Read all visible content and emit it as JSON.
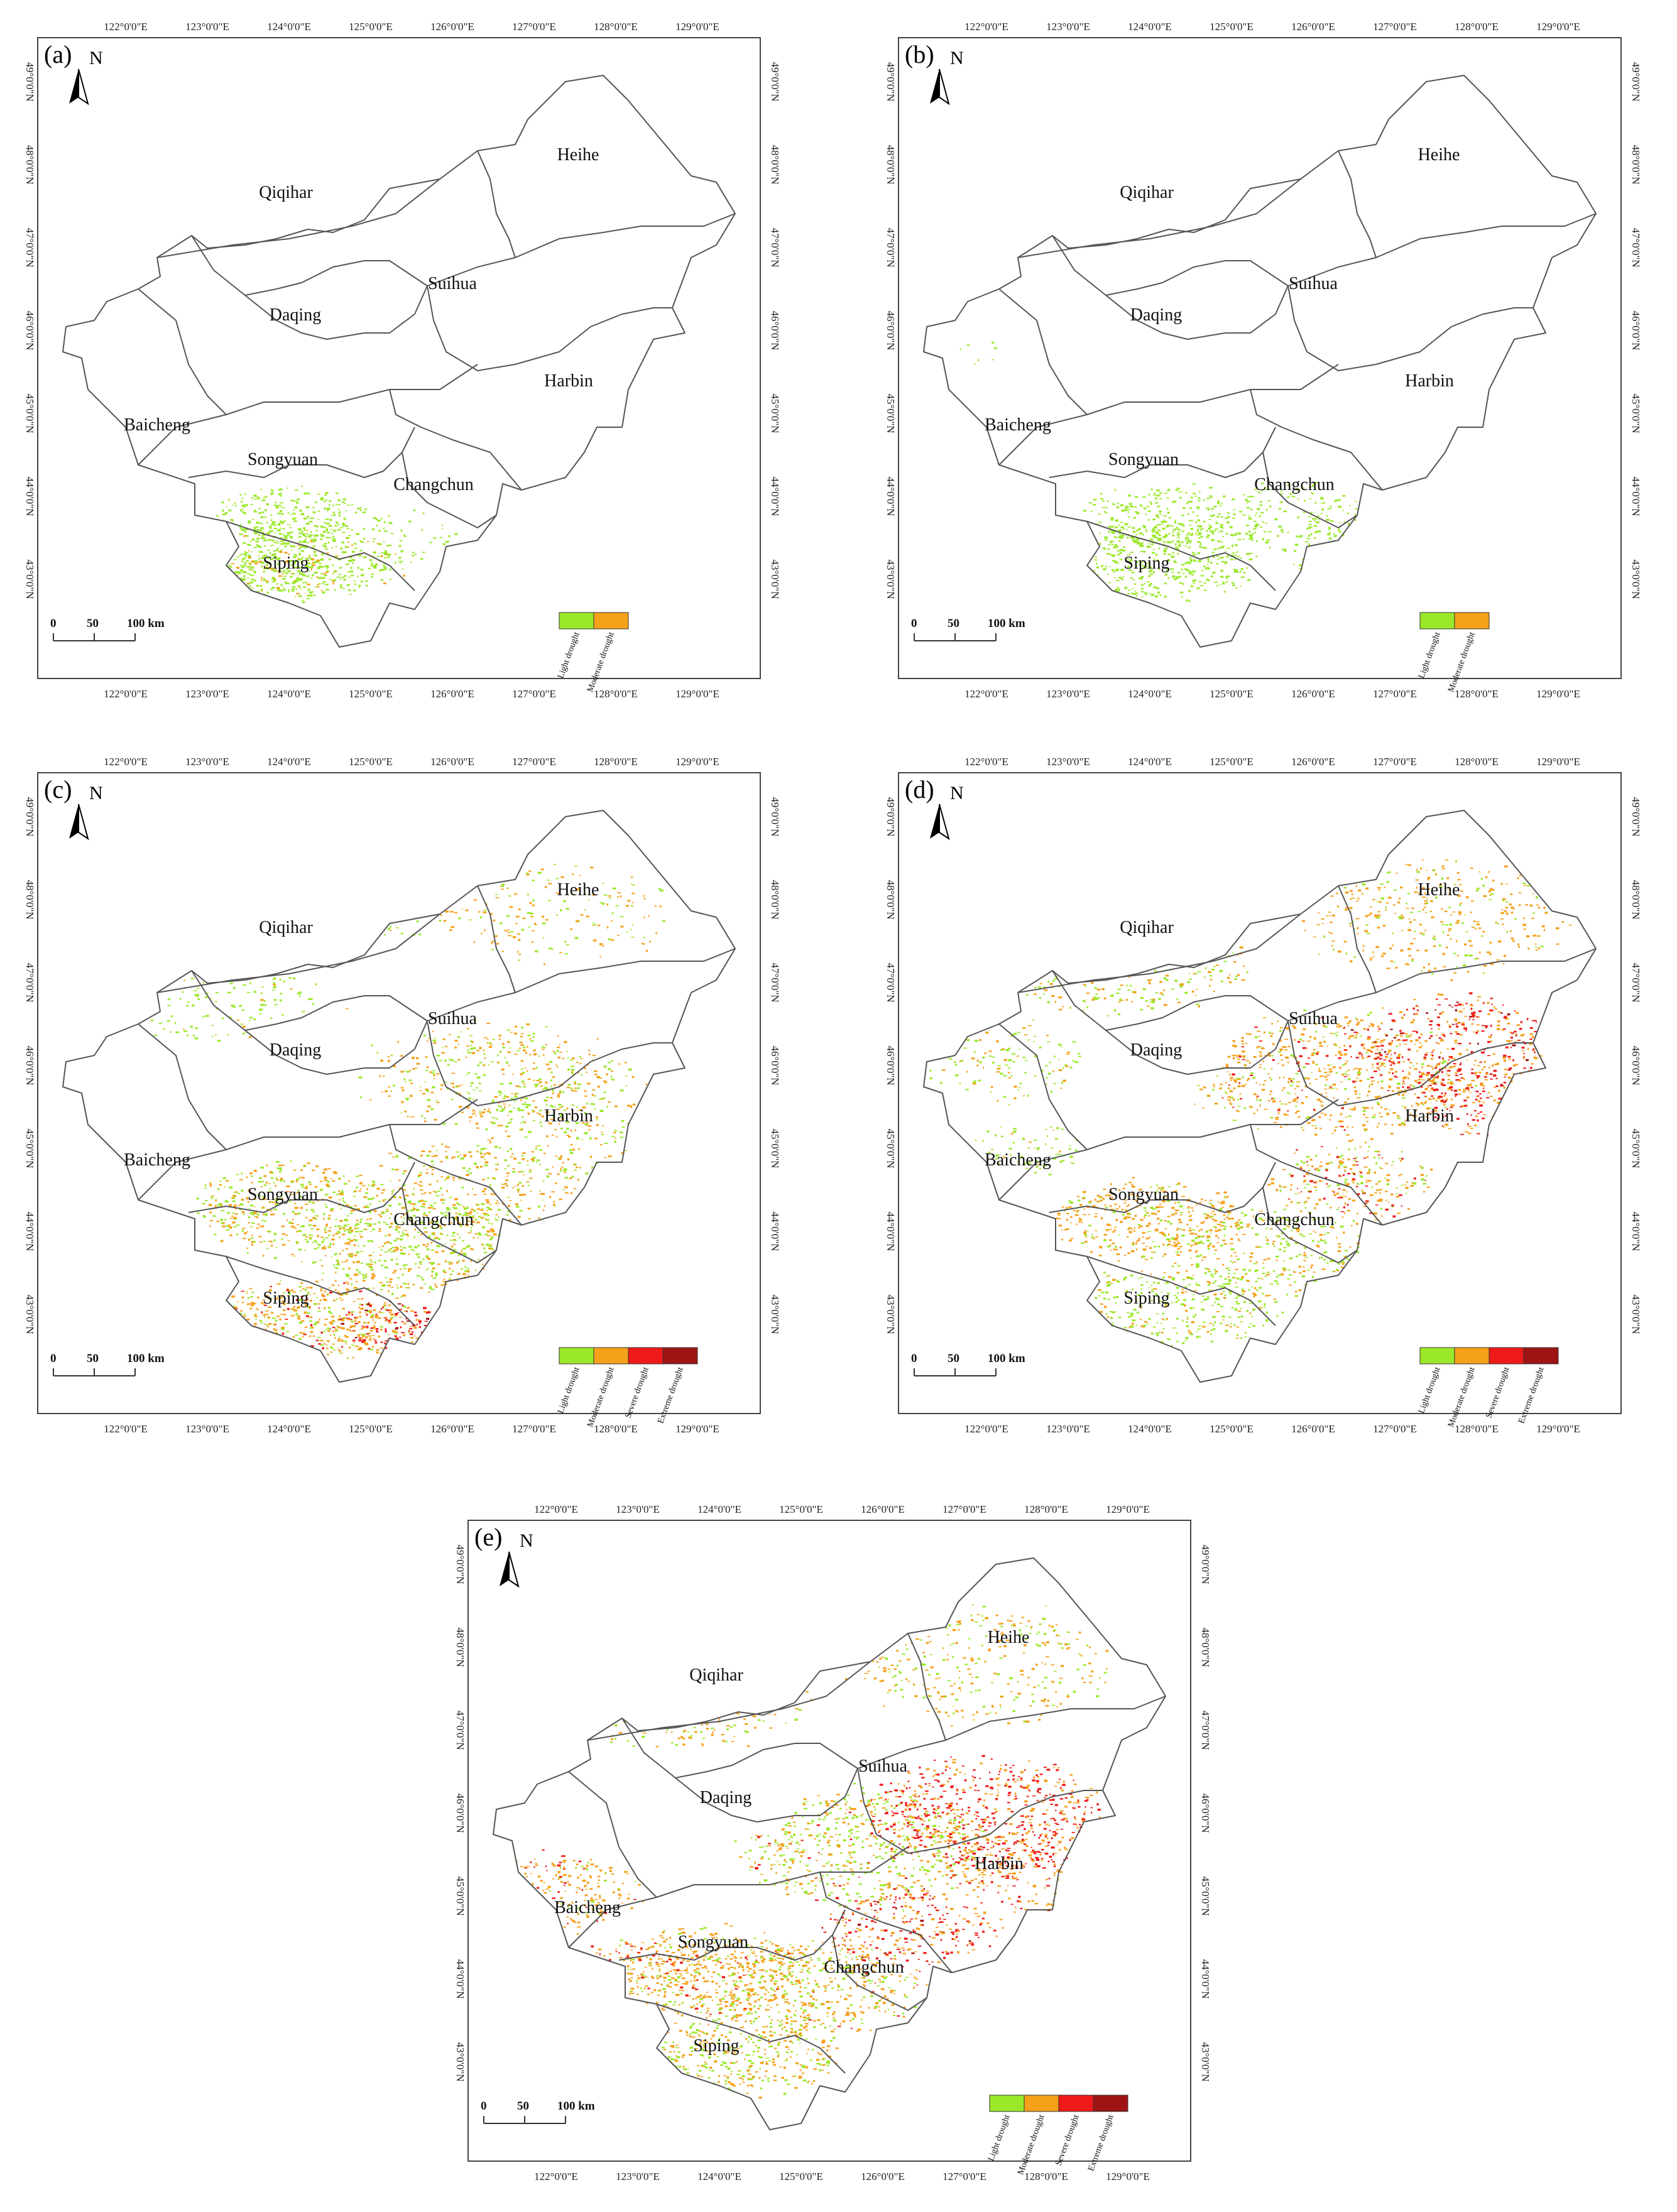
{
  "panels": [
    {
      "label": "(a)",
      "legend_classes": 2,
      "intensity": "a"
    },
    {
      "label": "(b)",
      "legend_classes": 2,
      "intensity": "b"
    },
    {
      "label": "(c)",
      "legend_classes": 4,
      "intensity": "c"
    },
    {
      "label": "(d)",
      "legend_classes": 4,
      "intensity": "d"
    },
    {
      "label": "(e)",
      "legend_classes": 4,
      "intensity": "e"
    }
  ],
  "north_arrow_label": "N",
  "scale_bar": {
    "t0": "0",
    "t1": "50",
    "t2": "100 km"
  },
  "longitude_ticks": [
    "122°0'0\"E",
    "123°0'0\"E",
    "124°0'0\"E",
    "125°0'0\"E",
    "126°0'0\"E",
    "127°0'0\"E",
    "128°0'0\"E",
    "129°0'0\"E"
  ],
  "latitude_ticks": [
    "49°0'0\"N",
    "48°0'0\"N",
    "47°0'0\"N",
    "46°0'0\"N",
    "45°0'0\"N",
    "44°0'0\"N",
    "43°0'0\"N"
  ],
  "cities": [
    "Heihe",
    "Qiqihar",
    "Suihua",
    "Daqing",
    "Harbin",
    "Baicheng",
    "Songyuan",
    "Changchun",
    "Siping"
  ],
  "legend": {
    "classes": [
      {
        "name": "Light drought",
        "color": "#9be82a"
      },
      {
        "name": "Moderate drought",
        "color": "#f5a11a"
      },
      {
        "name": "Severe drought",
        "color": "#ef1a1a"
      },
      {
        "name": "Extreme drought",
        "color": "#9e1313"
      }
    ]
  }
}
